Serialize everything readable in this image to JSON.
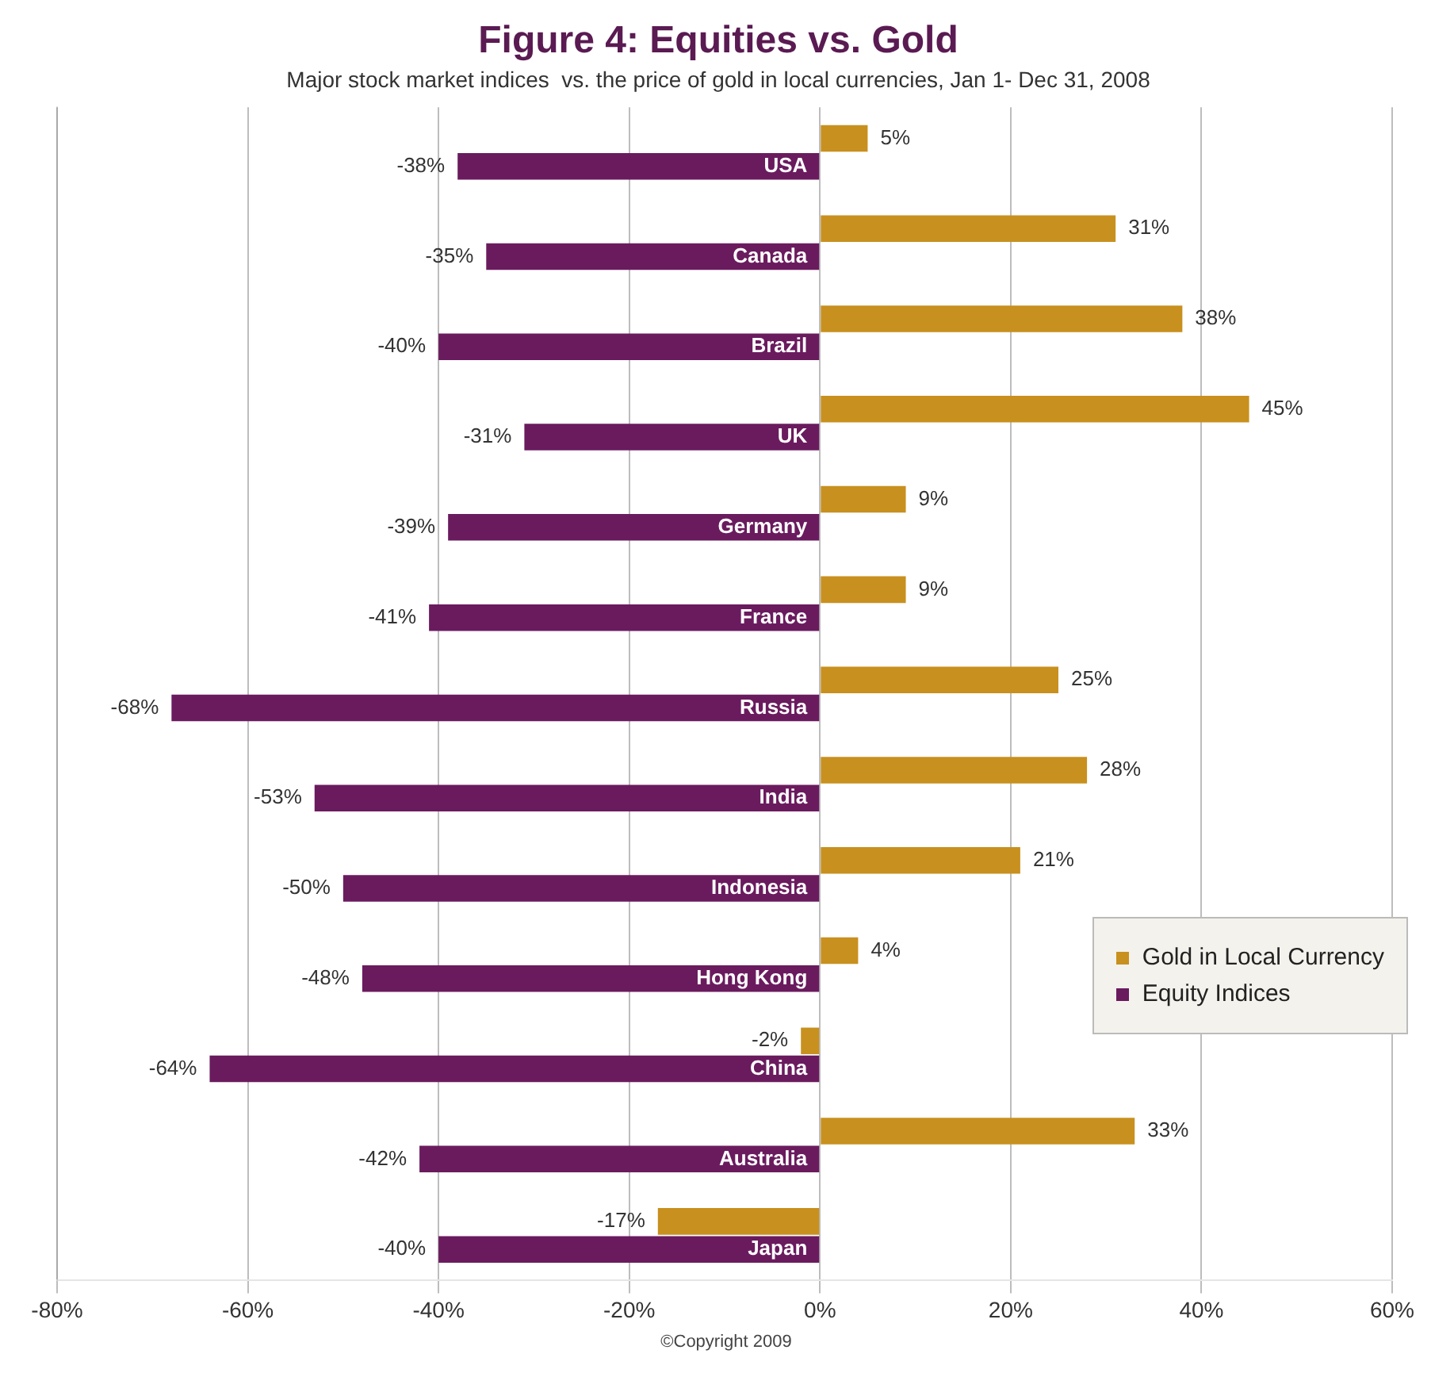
{
  "chart_data": {
    "type": "bar",
    "orientation": "horizontal",
    "title": "Figure 4: Equities vs. Gold",
    "subtitle": "Major stock market indices  vs. the price of gold in local currencies, Jan 1- Dec 31, 2008",
    "categories": [
      "USA",
      "Canada",
      "Brazil",
      "UK",
      "Germany",
      "France",
      "Russia",
      "India",
      "Indonesia",
      "Hong Kong",
      "China",
      "Australia",
      "Japan"
    ],
    "series": [
      {
        "name": "Gold in Local Currency",
        "color": "#c8901e",
        "values": [
          5,
          31,
          38,
          45,
          9,
          9,
          25,
          28,
          21,
          4,
          -2,
          33,
          -17
        ],
        "value_labels": [
          "5%",
          "31%",
          "38%",
          "45%",
          "9%",
          "9%",
          "25%",
          "28%",
          "21%",
          "4%",
          "-2%",
          "33%",
          "-17%"
        ]
      },
      {
        "name": "Equity Indices",
        "color": "#6a1b5e",
        "values": [
          -38,
          -35,
          -40,
          -31,
          -39,
          -41,
          -68,
          -53,
          -50,
          -48,
          -64,
          -42,
          -40
        ],
        "value_labels": [
          "-38%",
          "-35%",
          "-40%",
          "-31%",
          "-39%",
          "-41%",
          "-68%",
          "-53%",
          "-50%",
          "-48%",
          "-64%",
          "-42%",
          "-40%"
        ]
      }
    ],
    "xlim": [
      -80,
      60
    ],
    "xticks": [
      {
        "value": -80,
        "label": "-80%"
      },
      {
        "value": -60,
        "label": "-60%"
      },
      {
        "value": -40,
        "label": "-40%"
      },
      {
        "value": -20,
        "label": "-20%"
      },
      {
        "value": 0,
        "label": "0%"
      },
      {
        "value": 20,
        "label": "20%"
      },
      {
        "value": 40,
        "label": "40%"
      },
      {
        "value": 60,
        "label": "60%"
      }
    ],
    "grid": "x",
    "legend": "bottom right",
    "annotations": [
      "©Copyright 2009"
    ]
  }
}
